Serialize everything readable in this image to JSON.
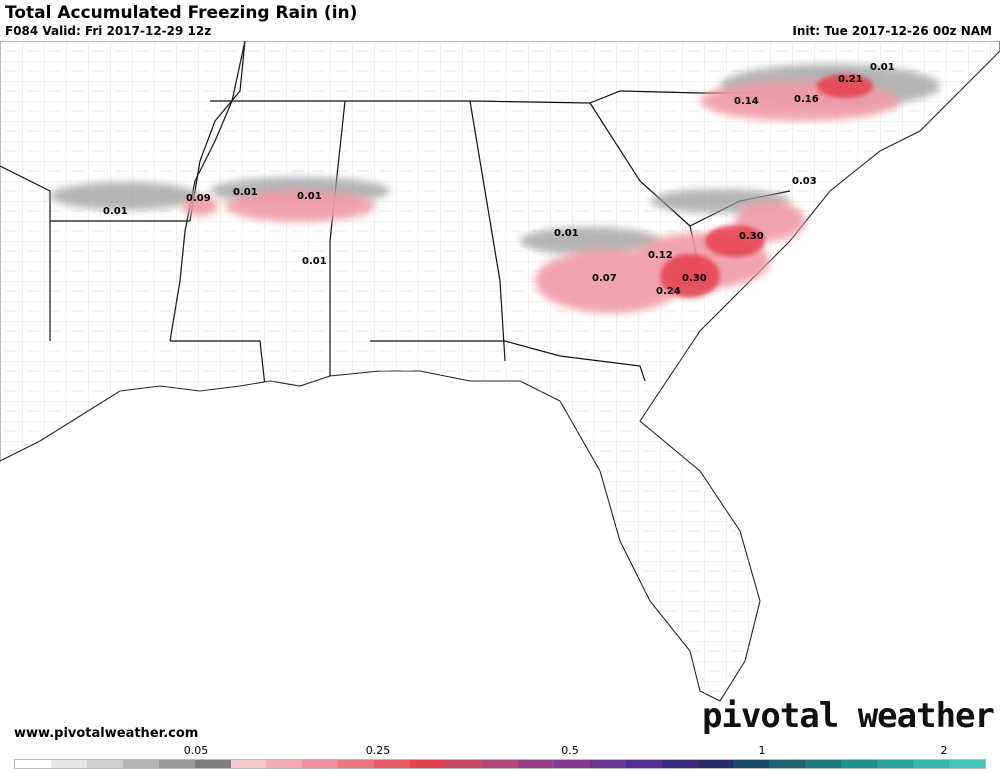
{
  "header": {
    "title": "Total Accumulated Freezing Rain (in)",
    "valid": "F084 Valid: Fri 2017-12-29 12z",
    "init": "Init: Tue 2017-12-26 00z NAM"
  },
  "footer": {
    "website": "www.pivotalweather.com",
    "logo": "pivotal weather"
  },
  "colorbar": {
    "ticks": [
      "0.05",
      "0.25",
      "0.5",
      "1",
      "2"
    ],
    "colors": [
      "#ffffff",
      "#e6e6e6",
      "#cfcfcf",
      "#b5b5b5",
      "#9a9a9a",
      "#7e7e7e",
      "#f6c8d0",
      "#f2a9b5",
      "#ee8d9c",
      "#ea7482",
      "#e65a66",
      "#e5404e",
      "#c8496a",
      "#b2457a",
      "#9a3f86",
      "#823a8e",
      "#6b3592",
      "#553092",
      "#3c2b7e",
      "#2b2d6a",
      "#1f4b6b",
      "#1f6271",
      "#1f7a7e",
      "#24908c",
      "#2aa59a",
      "#34b7aa",
      "#40c4b8"
    ]
  },
  "labels": [
    {
      "text": "0.01"
    },
    {
      "text": "0.09"
    },
    {
      "text": "0.01"
    },
    {
      "text": "0.01"
    },
    {
      "text": "0.01"
    },
    {
      "text": "0.01"
    },
    {
      "text": "0.12"
    },
    {
      "text": "0.07"
    },
    {
      "text": "0.24"
    },
    {
      "text": "0.30"
    },
    {
      "text": "0.30"
    },
    {
      "text": "0.03"
    },
    {
      "text": "0.14"
    },
    {
      "text": "0.16"
    },
    {
      "text": "0.21"
    },
    {
      "text": "0.01"
    }
  ]
}
